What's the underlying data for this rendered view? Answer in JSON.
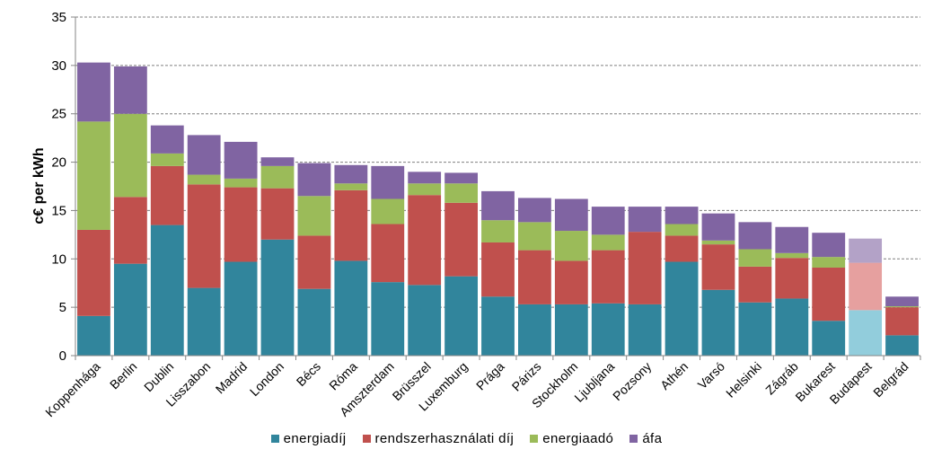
{
  "chart_data": {
    "type": "bar",
    "stacked": true,
    "title": "",
    "xlabel": "",
    "ylabel": "c€ per kWh",
    "ylim": [
      0,
      35
    ],
    "yticks": [
      0,
      5,
      10,
      15,
      20,
      25,
      30,
      35
    ],
    "grid": "horizontal dashed",
    "legend_position": "bottom",
    "categories": [
      "Koppenhága",
      "Berlin",
      "Dublin",
      "Lisszabon",
      "Madrid",
      "London",
      "Bécs",
      "Róma",
      "Amszterdam",
      "Brüsszel",
      "Luxemburg",
      "Prága",
      "Párizs",
      "Stockholm",
      "Ljubljana",
      "Pozsony",
      "Athén",
      "Varsó",
      "Helsinki",
      "Zágráb",
      "Bukarest",
      "Budapest",
      "Belgrád"
    ],
    "highlight_category": "Budapest",
    "series": [
      {
        "name": "energiadíj",
        "color": "#31859C",
        "highlight_color": "#92CDDC",
        "values": [
          4.1,
          9.5,
          13.5,
          7.0,
          9.7,
          12.0,
          6.9,
          9.8,
          7.6,
          7.3,
          8.2,
          6.1,
          5.3,
          5.3,
          5.4,
          5.3,
          9.7,
          6.8,
          5.5,
          5.9,
          3.6,
          4.7,
          2.1
        ]
      },
      {
        "name": "rendszerhasználati díj",
        "color": "#C0504D",
        "highlight_color": "#E6A09F",
        "values": [
          8.9,
          6.9,
          6.1,
          10.7,
          7.7,
          5.3,
          5.5,
          7.3,
          6.0,
          9.3,
          7.6,
          5.6,
          5.6,
          4.5,
          5.5,
          7.5,
          2.7,
          4.7,
          3.7,
          4.2,
          5.5,
          4.9,
          2.9
        ]
      },
      {
        "name": "energiaadó",
        "color": "#9BBB59",
        "highlight_color": "#C4D79B",
        "values": [
          11.2,
          8.6,
          1.3,
          1.0,
          0.9,
          2.3,
          4.1,
          0.7,
          2.6,
          1.2,
          2.0,
          2.3,
          2.9,
          3.1,
          1.6,
          0.0,
          1.2,
          0.4,
          1.8,
          0.5,
          1.1,
          0.0,
          0.1
        ]
      },
      {
        "name": "áfa",
        "color": "#8064A2",
        "highlight_color": "#B3A2C7",
        "values": [
          6.1,
          4.9,
          2.9,
          4.1,
          3.8,
          0.9,
          3.4,
          1.9,
          3.4,
          1.2,
          1.1,
          3.0,
          2.5,
          3.3,
          2.9,
          2.6,
          1.8,
          2.8,
          2.8,
          2.7,
          2.5,
          2.5,
          1.0
        ]
      }
    ]
  }
}
